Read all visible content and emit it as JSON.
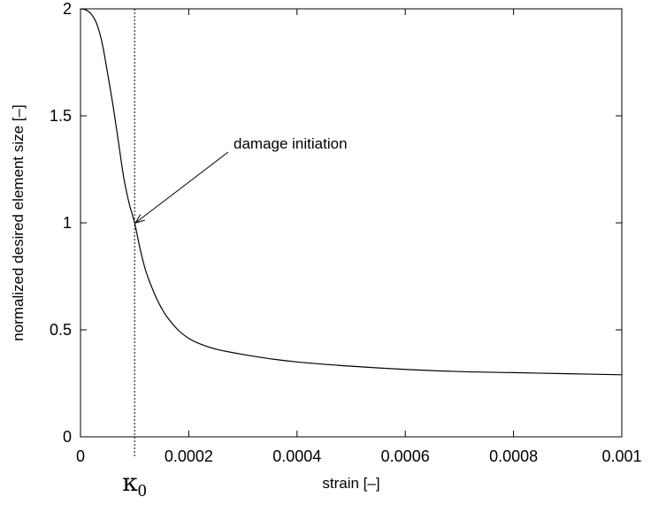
{
  "chart_data": {
    "type": "line",
    "title": "",
    "xlabel": "strain [–]",
    "ylabel": "normalized desired element size [–]",
    "xlim": [
      0,
      0.001
    ],
    "ylim": [
      0,
      2
    ],
    "grid": false,
    "x_ticks": [
      0,
      0.0002,
      0.0004,
      0.0006,
      0.0008,
      0.001
    ],
    "x_tick_labels": [
      "0",
      "0.0002",
      "0.0004",
      "0.0006",
      "0.0008",
      "0.001"
    ],
    "y_ticks": [
      0,
      0.5,
      1,
      1.5,
      2
    ],
    "y_tick_labels": [
      "0",
      "0.5",
      "1",
      "1.5",
      "2"
    ],
    "series": [
      {
        "x": [
          0,
          1e-05,
          2e-05,
          3e-05,
          4e-05,
          5e-05,
          6e-05,
          7e-05,
          8e-05,
          9e-05,
          0.0001,
          0.00011,
          0.00012,
          0.00013,
          0.00014,
          0.00015,
          0.00016,
          0.00018,
          0.0002,
          0.00022,
          0.00025,
          0.0003,
          0.00035,
          0.0004,
          0.0005,
          0.0006,
          0.0007,
          0.0008,
          0.0009,
          0.001
        ],
        "y": [
          2.0,
          1.995,
          1.975,
          1.93,
          1.84,
          1.7,
          1.55,
          1.38,
          1.21,
          1.09,
          1.0,
          0.88,
          0.78,
          0.71,
          0.65,
          0.6,
          0.56,
          0.5,
          0.46,
          0.435,
          0.41,
          0.385,
          0.365,
          0.35,
          0.33,
          0.315,
          0.305,
          0.3,
          0.295,
          0.29
        ]
      }
    ],
    "vline": {
      "x": 0.0001,
      "label": "κ",
      "label_sub": "0"
    },
    "annotation": {
      "text": "damage initiation",
      "x": 0.0001,
      "y": 1.0
    }
  }
}
